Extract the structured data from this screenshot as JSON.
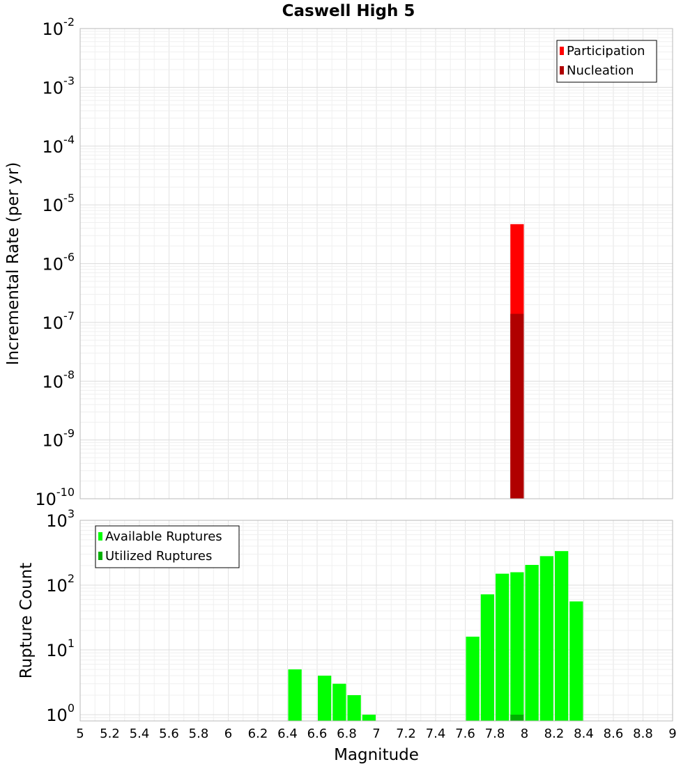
{
  "chart_data": [
    {
      "type": "bar",
      "title": "Caswell High 5",
      "xlabel": "",
      "ylabel": "Incremental Rate (per yr)",
      "yscale": "log",
      "ylim": [
        1e-10,
        0.01
      ],
      "y_tick_labels": [
        {
          "base": "10",
          "exp": "-10"
        },
        {
          "base": "10",
          "exp": "-9"
        },
        {
          "base": "10",
          "exp": "-8"
        },
        {
          "base": "10",
          "exp": "-7"
        },
        {
          "base": "10",
          "exp": "-6"
        },
        {
          "base": "10",
          "exp": "-5"
        },
        {
          "base": "10",
          "exp": "-4"
        },
        {
          "base": "10",
          "exp": "-3"
        },
        {
          "base": "10",
          "exp": "-2"
        }
      ],
      "xlim": [
        5,
        9
      ],
      "bin_width": 0.1,
      "legend_position": "top-right",
      "grid": true,
      "series": [
        {
          "name": "Participation",
          "color": "#ff0000",
          "points": [
            {
              "x": 7.95,
              "y": 4.7e-06
            }
          ]
        },
        {
          "name": "Nucleation",
          "color": "#b00000",
          "points": [
            {
              "x": 7.95,
              "y": 1.4e-07
            }
          ]
        }
      ]
    },
    {
      "type": "bar",
      "title": "",
      "xlabel": "Magnitude",
      "ylabel": "Rupture Count",
      "yscale": "log",
      "ylim": [
        0.8,
        1000
      ],
      "y_tick_labels": [
        {
          "base": "10",
          "exp": "0"
        },
        {
          "base": "10",
          "exp": "1"
        },
        {
          "base": "10",
          "exp": "2"
        },
        {
          "base": "10",
          "exp": "3"
        }
      ],
      "xlim": [
        5,
        9
      ],
      "x_tick_labels": [
        "5",
        "5.2",
        "5.4",
        "5.6",
        "5.8",
        "6",
        "6.2",
        "6.4",
        "6.6",
        "6.8",
        "7",
        "7.2",
        "7.4",
        "7.6",
        "7.8",
        "8",
        "8.2",
        "8.4",
        "8.6",
        "8.8",
        "9"
      ],
      "bin_width": 0.1,
      "legend_position": "top-left",
      "grid": true,
      "series": [
        {
          "name": "Available Ruptures",
          "color": "#00ff00",
          "points": [
            {
              "x": 6.45,
              "y": 5
            },
            {
              "x": 6.65,
              "y": 4
            },
            {
              "x": 6.75,
              "y": 3
            },
            {
              "x": 6.85,
              "y": 2
            },
            {
              "x": 6.95,
              "y": 1
            },
            {
              "x": 7.65,
              "y": 16
            },
            {
              "x": 7.75,
              "y": 72
            },
            {
              "x": 7.85,
              "y": 150
            },
            {
              "x": 7.95,
              "y": 158
            },
            {
              "x": 8.05,
              "y": 205
            },
            {
              "x": 8.15,
              "y": 280
            },
            {
              "x": 8.25,
              "y": 335
            },
            {
              "x": 8.35,
              "y": 56
            }
          ]
        },
        {
          "name": "Utilized Ruptures",
          "color": "#00b000",
          "points": [
            {
              "x": 7.95,
              "y": 1
            }
          ]
        }
      ]
    }
  ]
}
